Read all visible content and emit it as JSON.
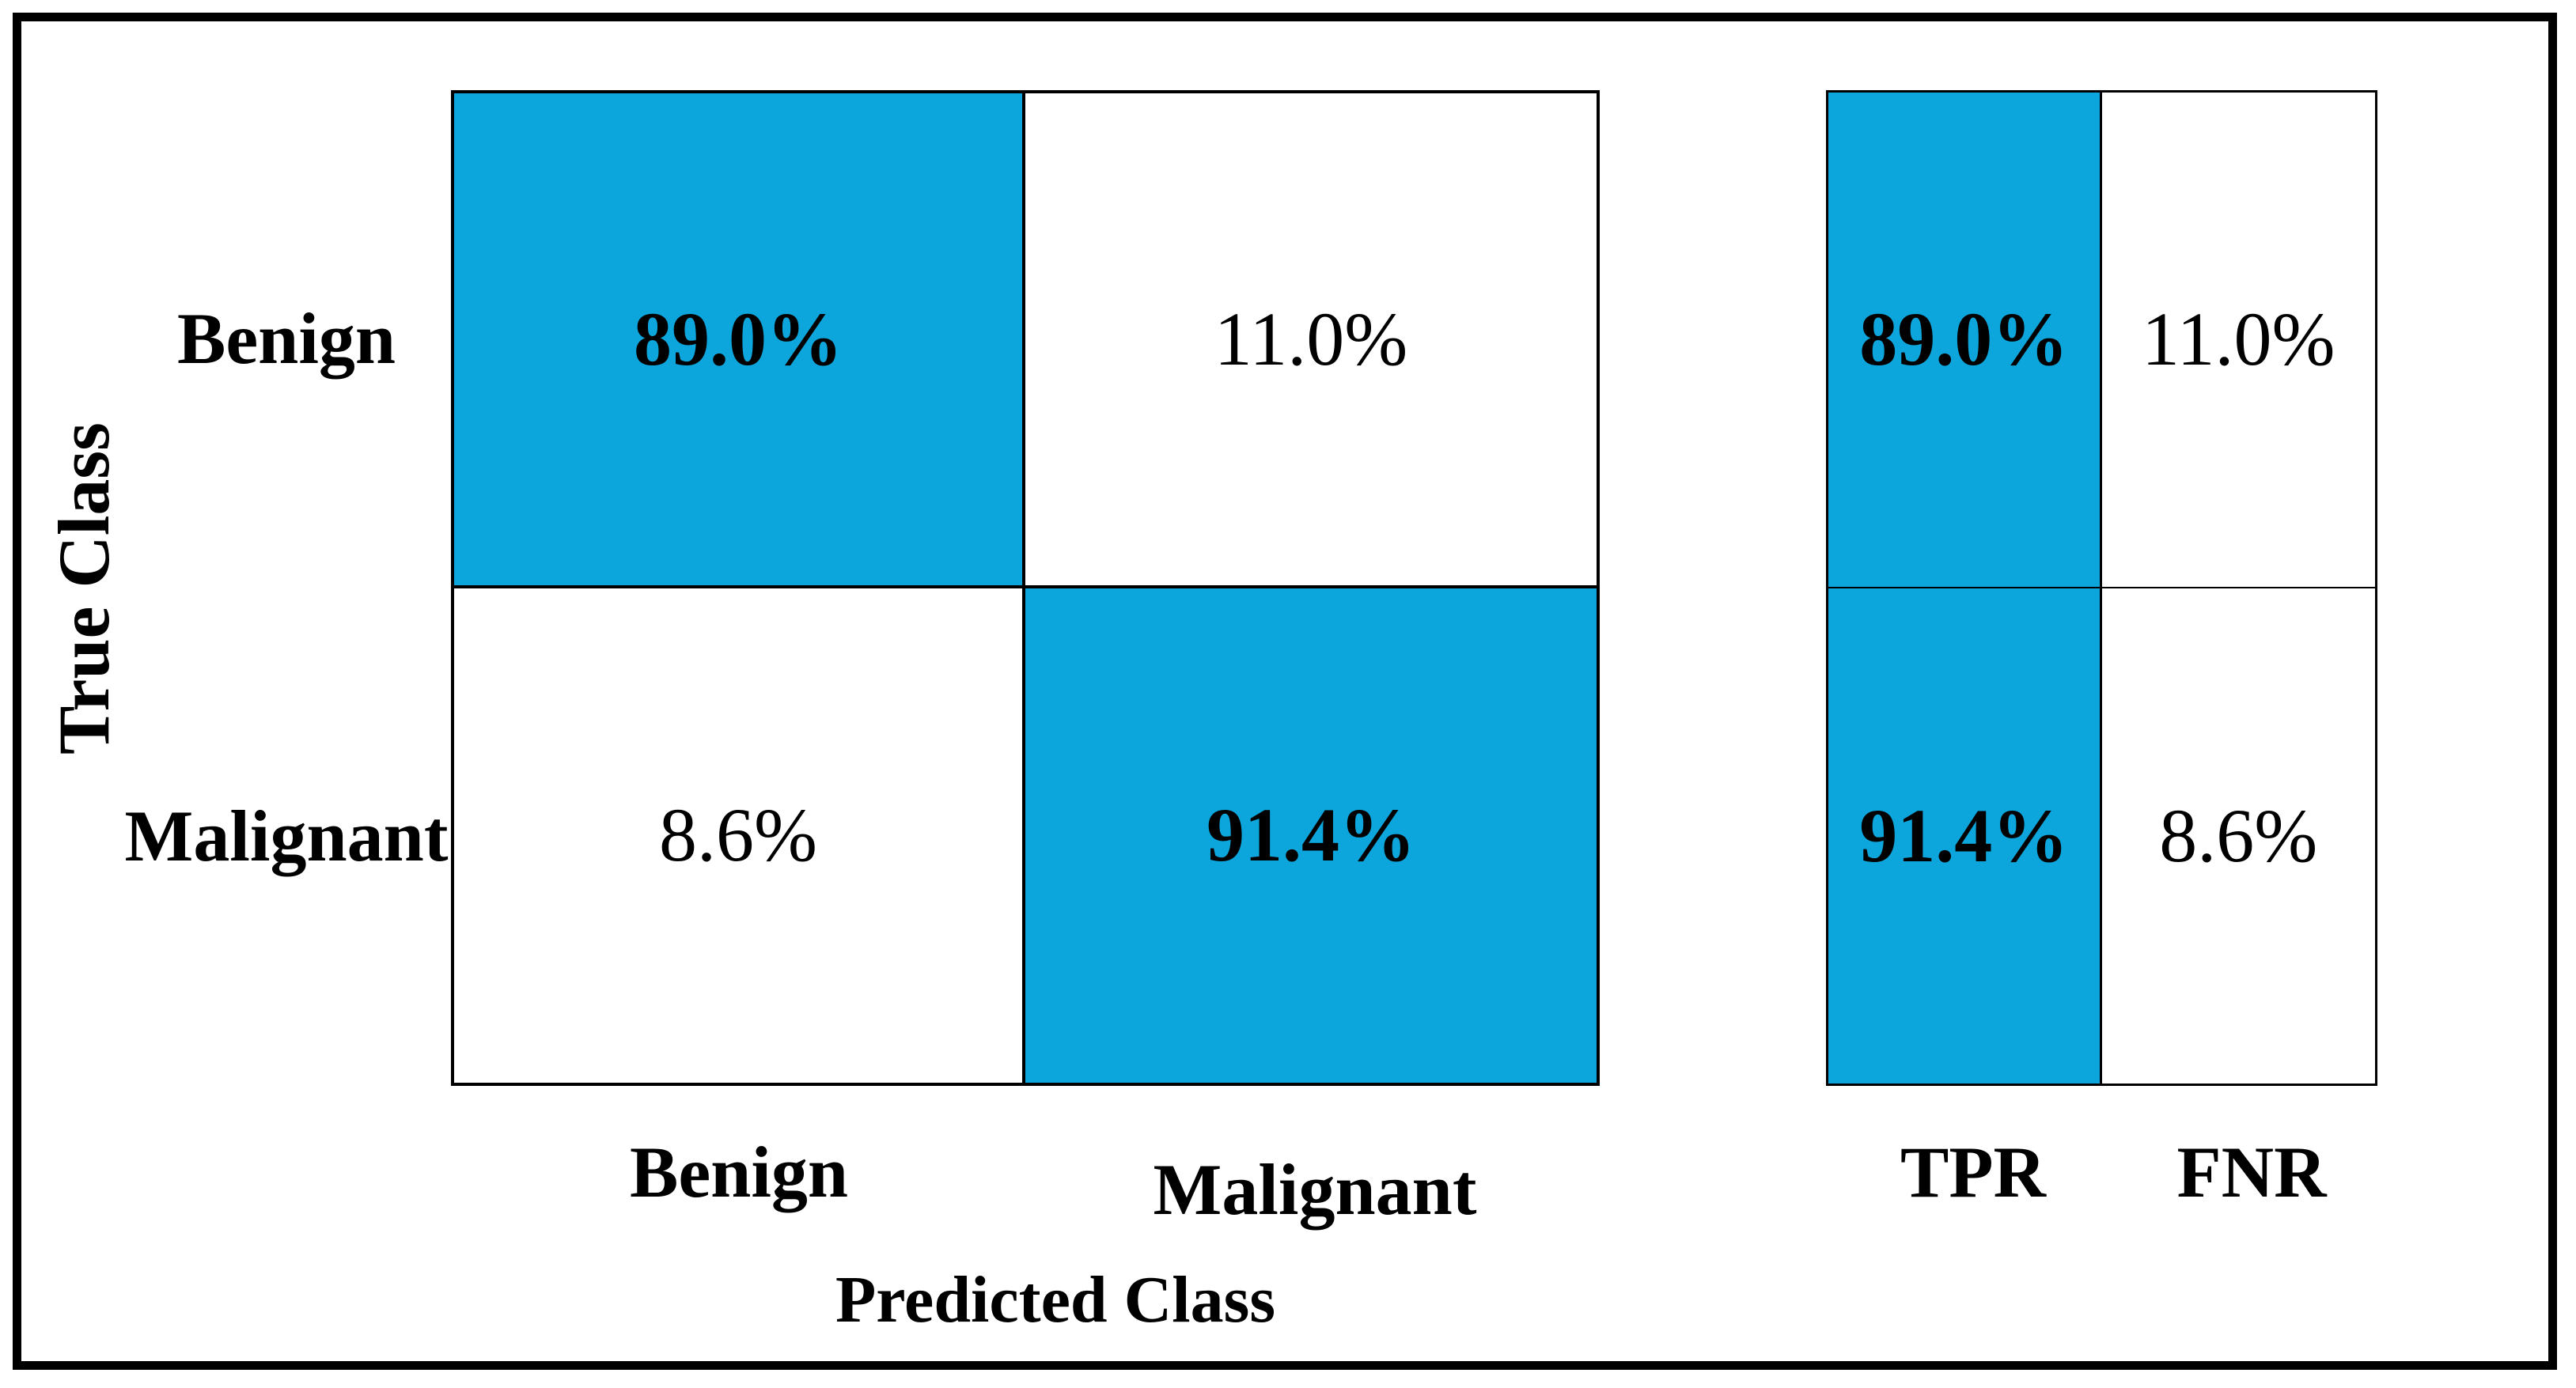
{
  "colors": {
    "highlight": "#0CA5DC",
    "border": "#000000",
    "text": "#000000",
    "background": "#FFFFFF"
  },
  "chart_data": {
    "type": "heatmap",
    "title": "",
    "xlabel": "Predicted Class",
    "ylabel": "True Class",
    "x_categories": [
      "Benign",
      "Malignant"
    ],
    "y_categories": [
      "Benign",
      "Malignant"
    ],
    "matrix_percent": [
      [
        89.0,
        11.0
      ],
      [
        8.6,
        91.4
      ]
    ],
    "summary_columns": [
      "TPR",
      "FNR"
    ],
    "summary_percent": [
      [
        89.0,
        11.0
      ],
      [
        91.4,
        8.6
      ]
    ],
    "highlighted_cells": [
      [
        0,
        0
      ],
      [
        1,
        1
      ]
    ],
    "highlight_color": "#0CA5DC",
    "legend": "none",
    "grid": "cell-borders"
  },
  "matrix": {
    "ylabel": "True Class",
    "xlabel": "Predicted Class",
    "row_labels": [
      "Benign",
      "Malignant"
    ],
    "col_labels": [
      "Benign",
      "Malignant"
    ],
    "values": [
      [
        "89.0%",
        "11.0%"
      ],
      [
        "8.6%",
        "91.4%"
      ]
    ]
  },
  "summary": {
    "col_labels": [
      "TPR",
      "FNR"
    ],
    "values": [
      [
        "89.0%",
        "11.0%"
      ],
      [
        "91.4%",
        "8.6%"
      ]
    ]
  }
}
